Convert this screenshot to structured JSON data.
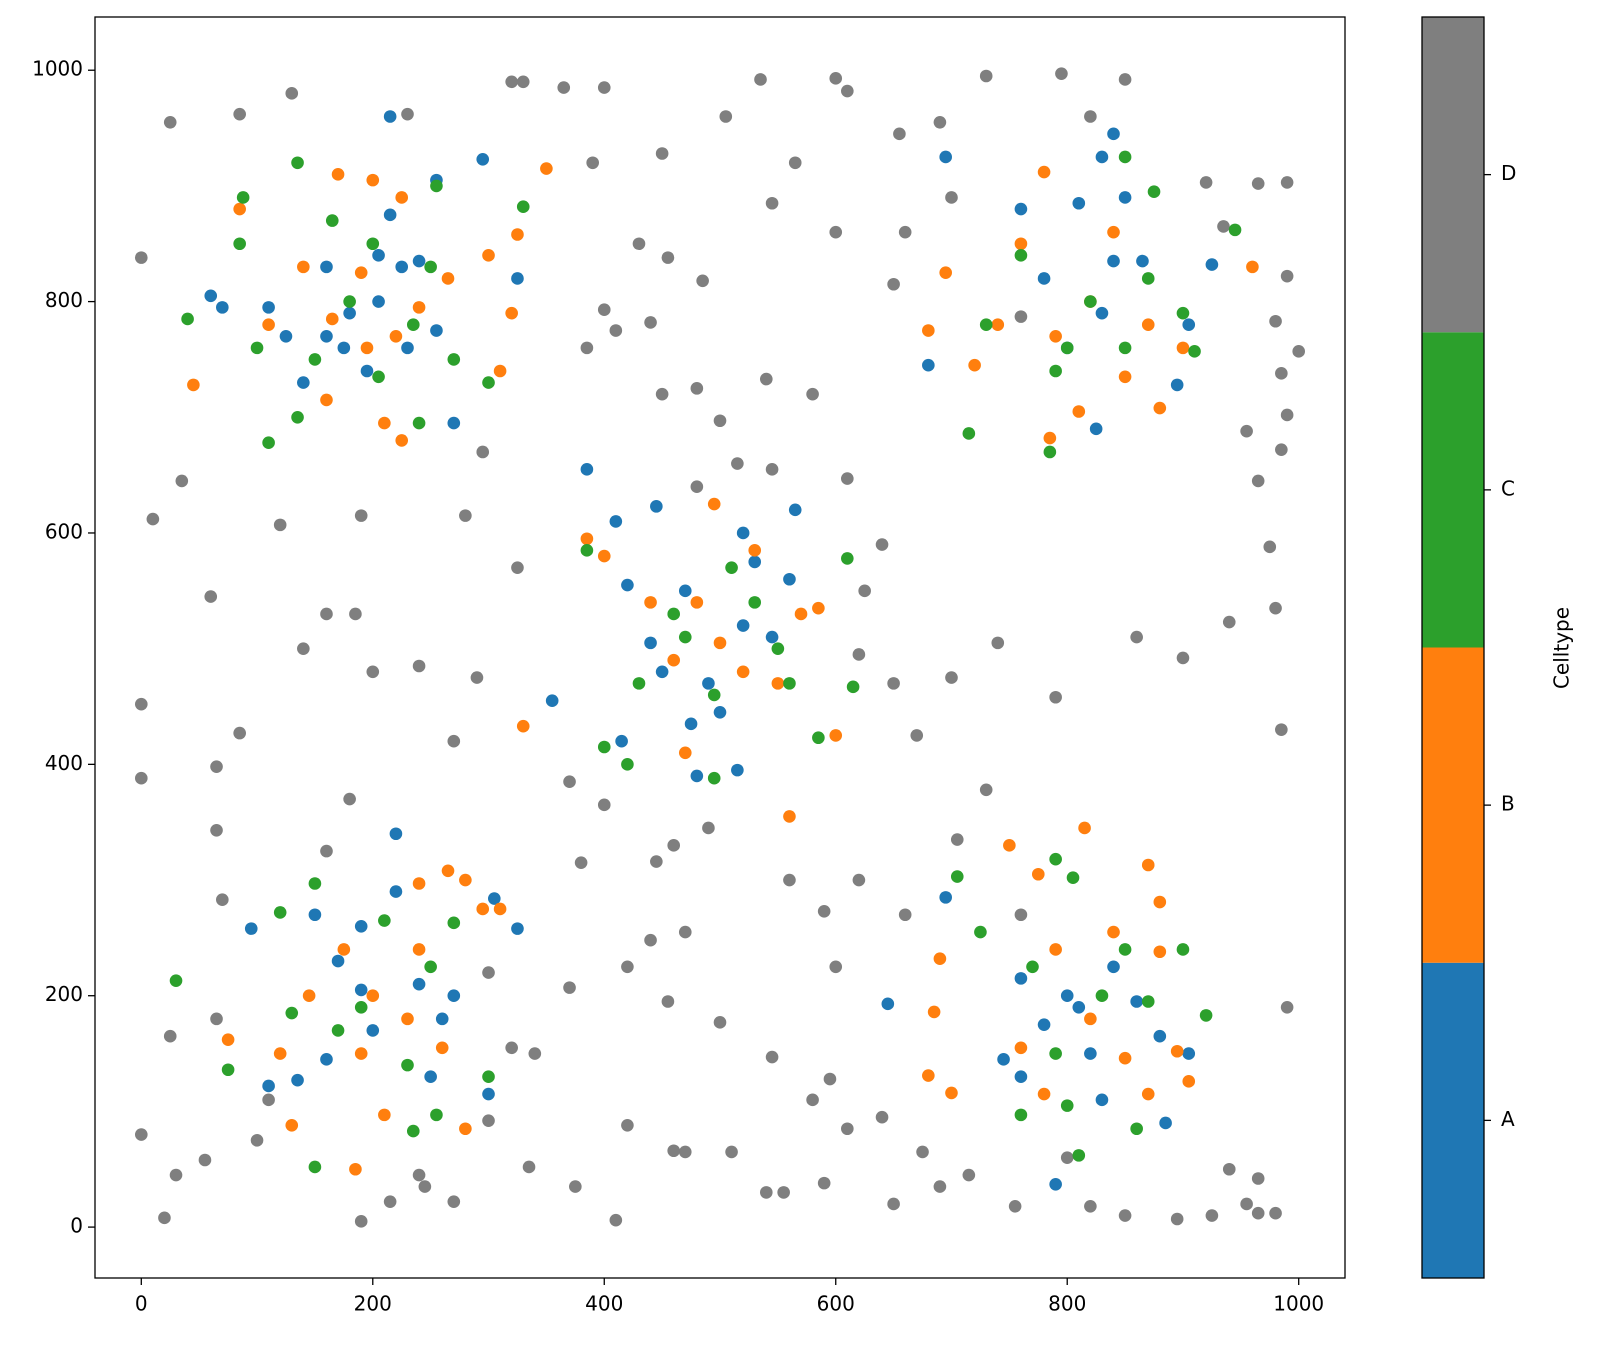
{
  "chart_data": {
    "type": "scatter",
    "xlim": [
      -40,
      1040
    ],
    "ylim": [
      -44,
      1046
    ],
    "xticks": [
      0,
      200,
      400,
      600,
      800,
      1000
    ],
    "yticks": [
      0,
      200,
      400,
      600,
      800,
      1000
    ],
    "colorbar": {
      "label": "Celltype"
    },
    "series": [
      {
        "name": "D",
        "color": "#7f7f7f",
        "x": [
          0,
          25,
          130,
          85,
          230,
          320,
          330,
          365,
          400,
          505,
          535,
          600,
          610,
          655,
          690,
          730,
          795,
          820,
          850,
          920,
          965,
          990,
          935,
          990,
          1000,
          980,
          985,
          990,
          955,
          985,
          0,
          0,
          10,
          35,
          60,
          65,
          65,
          70,
          85,
          100,
          0,
          20,
          30,
          55,
          190,
          215,
          245,
          270,
          335,
          375,
          410,
          420,
          460,
          470,
          540,
          555,
          590,
          610,
          650,
          675,
          690,
          715,
          755,
          800,
          820,
          850,
          895,
          925,
          955,
          965,
          980,
          940,
          965,
          990,
          985,
          965,
          980,
          975,
          940,
          900,
          860,
          790,
          740,
          700,
          670,
          650,
          620,
          610,
          580,
          540,
          500,
          480,
          450,
          430,
          390,
          450,
          565,
          545,
          600,
          660,
          650,
          700,
          760,
          625,
          640,
          160,
          185,
          200,
          240,
          270,
          290,
          325,
          370,
          400,
          380,
          445,
          460,
          470,
          490,
          560,
          590,
          600,
          620,
          640,
          660,
          705,
          730,
          760,
          280,
          295,
          190,
          120,
          140,
          180,
          160,
          370,
          420,
          440,
          455,
          500,
          510,
          545,
          580,
          595,
          320,
          340,
          300,
          240,
          25,
          65,
          110,
          300,
          400,
          410,
          385,
          440,
          455,
          485,
          480,
          515,
          545
        ],
        "y": [
          838,
          955,
          980,
          962,
          962,
          990,
          990,
          985,
          985,
          960,
          992,
          993,
          982,
          945,
          955,
          995,
          997,
          960,
          992,
          903,
          902,
          903,
          865,
          822,
          757,
          783,
          738,
          702,
          688,
          672,
          452,
          388,
          612,
          645,
          545,
          398,
          343,
          283,
          427,
          75,
          80,
          8,
          45,
          58,
          5,
          22,
          35,
          22,
          52,
          35,
          6,
          88,
          66,
          65,
          30,
          30,
          38,
          85,
          20,
          65,
          35,
          45,
          18,
          60,
          18,
          10,
          7,
          10,
          20,
          12,
          12,
          50,
          42,
          190,
          430,
          645,
          535,
          588,
          523,
          492,
          510,
          458,
          505,
          475,
          425,
          470,
          495,
          647,
          720,
          733,
          697,
          725,
          720,
          850,
          920,
          928,
          920,
          885,
          860,
          860,
          815,
          890,
          787,
          550,
          590,
          530,
          530,
          480,
          485,
          420,
          475,
          570,
          385,
          365,
          315,
          316,
          330,
          255,
          345,
          300,
          273,
          225,
          300,
          95,
          270,
          335,
          378,
          270,
          615,
          670,
          615,
          607,
          500,
          370,
          325,
          207,
          225,
          248,
          195,
          177,
          65,
          147,
          110,
          128,
          155,
          150,
          92,
          45,
          165,
          180,
          110,
          220,
          793,
          775,
          760,
          782,
          838,
          818,
          640,
          660,
          655
        ]
      },
      {
        "name": "A",
        "color": "#1f77b4",
        "x": [
          215,
          295,
          255,
          325,
          270,
          140,
          205,
          180,
          225,
          160,
          230,
          175,
          110,
          125,
          255,
          240,
          205,
          60,
          70,
          195,
          215,
          160,
          385,
          410,
          445,
          565,
          520,
          415,
          480,
          515,
          355,
          440,
          470,
          520,
          490,
          560,
          420,
          500,
          530,
          475,
          545,
          450,
          695,
          840,
          830,
          760,
          780,
          800,
          830,
          840,
          865,
          925,
          905,
          825,
          895,
          680,
          810,
          850,
          220,
          190,
          95,
          110,
          325,
          305,
          190,
          220,
          160,
          240,
          260,
          170,
          150,
          270,
          200,
          135,
          250,
          300,
          645,
          695,
          790,
          885,
          905,
          880,
          800,
          820,
          840,
          780,
          760,
          830,
          810,
          860,
          760,
          745
        ],
        "y": [
          960,
          923,
          905,
          820,
          695,
          730,
          800,
          790,
          830,
          770,
          760,
          760,
          795,
          770,
          775,
          835,
          840,
          805,
          795,
          740,
          875,
          830,
          655,
          610,
          623,
          620,
          600,
          420,
          390,
          395,
          455,
          505,
          550,
          520,
          470,
          560,
          555,
          445,
          575,
          435,
          510,
          480,
          925,
          945,
          925,
          880,
          820,
          760,
          790,
          835,
          835,
          832,
          780,
          690,
          728,
          745,
          885,
          890,
          340,
          205,
          258,
          122,
          258,
          284,
          260,
          290,
          145,
          210,
          180,
          230,
          270,
          200,
          170,
          127,
          130,
          115,
          193,
          285,
          37,
          90,
          150,
          165,
          200,
          150,
          225,
          175,
          130,
          110,
          190,
          195,
          215,
          145
        ]
      },
      {
        "name": "B",
        "color": "#ff7f0e",
        "x": [
          350,
          200,
          170,
          225,
          85,
          160,
          210,
          225,
          45,
          310,
          320,
          300,
          325,
          140,
          190,
          240,
          165,
          220,
          265,
          195,
          110,
          385,
          400,
          495,
          330,
          560,
          470,
          600,
          530,
          500,
          460,
          550,
          570,
          480,
          520,
          440,
          585,
          780,
          680,
          695,
          960,
          880,
          785,
          810,
          760,
          820,
          740,
          790,
          850,
          840,
          720,
          870,
          900,
          185,
          130,
          240,
          265,
          280,
          295,
          310,
          75,
          280,
          210,
          175,
          200,
          230,
          145,
          240,
          260,
          120,
          190,
          815,
          750,
          775,
          870,
          880,
          880,
          905,
          895,
          690,
          685,
          700,
          680,
          850,
          870,
          790,
          820,
          760,
          840,
          780
        ],
        "y": [
          915,
          905,
          910,
          890,
          880,
          715,
          695,
          680,
          728,
          740,
          790,
          840,
          858,
          830,
          825,
          795,
          785,
          770,
          820,
          760,
          780,
          595,
          580,
          625,
          433,
          355,
          410,
          425,
          585,
          505,
          490,
          470,
          530,
          540,
          480,
          540,
          535,
          912,
          775,
          825,
          830,
          708,
          682,
          705,
          850,
          800,
          780,
          770,
          735,
          860,
          745,
          780,
          760,
          50,
          88,
          297,
          308,
          300,
          275,
          275,
          162,
          85,
          97,
          240,
          200,
          180,
          200,
          240,
          155,
          150,
          150,
          345,
          330,
          305,
          313,
          281,
          238,
          126,
          152,
          232,
          186,
          116,
          131,
          146,
          115,
          240,
          180,
          155,
          255,
          115
        ]
      },
      {
        "name": "C",
        "color": "#2ca02c",
        "x": [
          135,
          40,
          110,
          135,
          240,
          255,
          88,
          85,
          330,
          300,
          270,
          200,
          165,
          180,
          235,
          150,
          250,
          100,
          205,
          385,
          400,
          420,
          495,
          610,
          615,
          585,
          510,
          470,
          550,
          530,
          430,
          495,
          560,
          460,
          910,
          715,
          785,
          945,
          875,
          850,
          820,
          760,
          800,
          730,
          870,
          790,
          850,
          900,
          30,
          150,
          235,
          255,
          75,
          300,
          270,
          150,
          120,
          170,
          210,
          250,
          130,
          190,
          230,
          790,
          705,
          805,
          920,
          900,
          860,
          810,
          760,
          725,
          770,
          830,
          790,
          850,
          800,
          870
        ],
        "y": [
          920,
          785,
          678,
          700,
          695,
          900,
          890,
          850,
          882,
          730,
          750,
          850,
          870,
          800,
          780,
          750,
          830,
          760,
          735,
          585,
          415,
          400,
          388,
          578,
          467,
          423,
          570,
          510,
          500,
          540,
          470,
          460,
          470,
          530,
          757,
          686,
          670,
          862,
          895,
          925,
          800,
          840,
          760,
          780,
          820,
          740,
          760,
          790,
          213,
          52,
          83,
          97,
          136,
          130,
          263,
          297,
          272,
          170,
          265,
          225,
          185,
          190,
          140,
          318,
          303,
          302,
          183,
          240,
          85,
          62,
          97,
          255,
          225,
          200,
          150,
          240,
          105,
          195
        ]
      }
    ]
  }
}
